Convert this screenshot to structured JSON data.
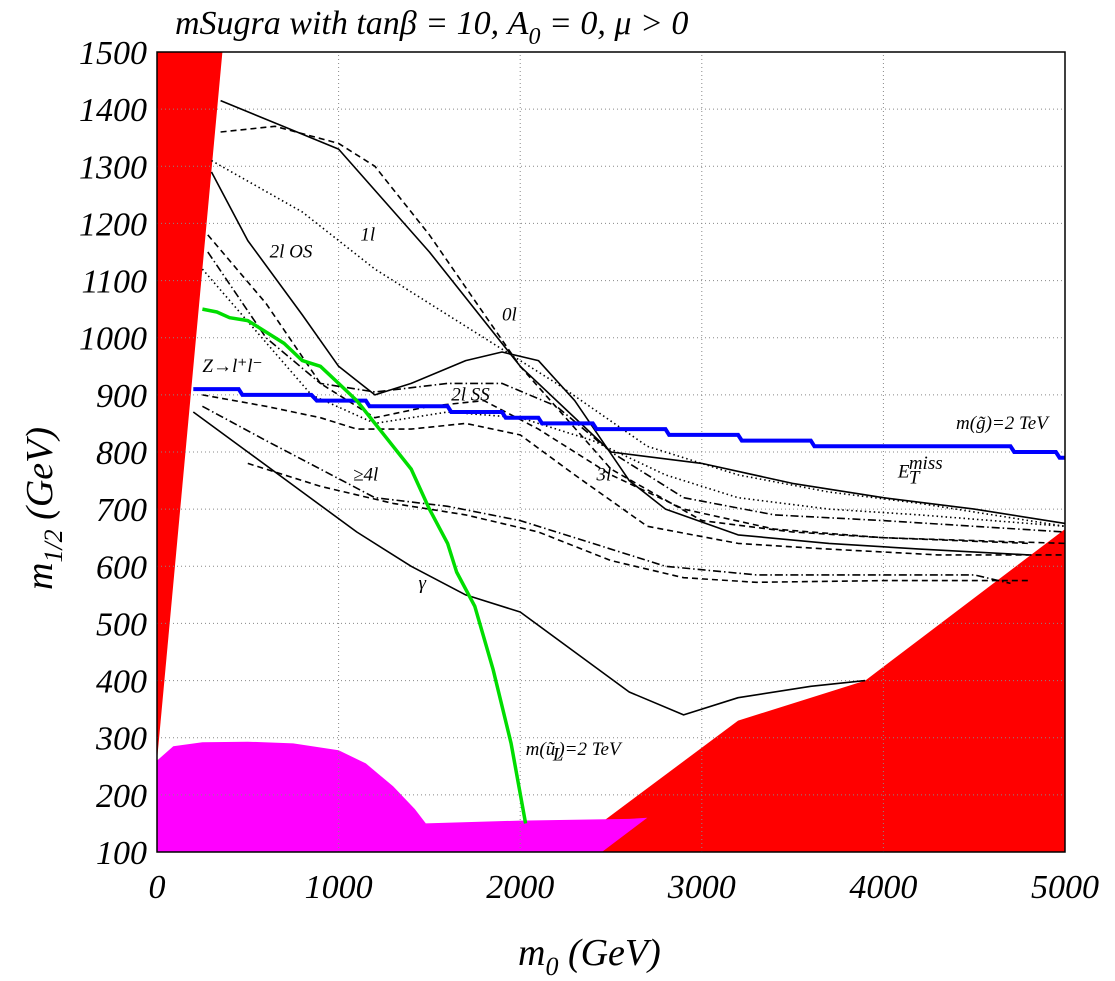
{
  "chart_data": {
    "type": "line",
    "title": "mSugra with tanβ = 10, A",
    "title_sub": "0",
    "title_tail": " = 0, μ > 0",
    "xlabel": "m",
    "xlabel_sub": "0",
    "xlabel_unit": " (GeV)",
    "ylabel": "m",
    "ylabel_sub": "1/2",
    "ylabel_unit": " (GeV)",
    "xlim": [
      0,
      5000
    ],
    "ylim": [
      100,
      1500
    ],
    "grid": true,
    "xticks": [
      "0",
      "1000",
      "2000",
      "3000",
      "4000",
      "5000"
    ],
    "yticks": [
      "100",
      "200",
      "300",
      "400",
      "500",
      "600",
      "700",
      "800",
      "900",
      "1000",
      "1100",
      "1200",
      "1300",
      "1400",
      "1500"
    ],
    "colors": {
      "excluded": "#ff0000",
      "lep_excluded": "#ff00ff",
      "gluino": "#0000ff",
      "squark": "#00dd00",
      "curve": "#000000",
      "grid": "#888888"
    },
    "regions": [
      {
        "name": "excluded-left",
        "color": "#ff0000",
        "points": [
          [
            0,
            1500
          ],
          [
            360,
            1500
          ],
          [
            0,
            260
          ]
        ]
      },
      {
        "name": "excluded-right",
        "color": "#ff0000",
        "points": [
          [
            2230,
            100
          ],
          [
            5000,
            100
          ],
          [
            5000,
            665
          ],
          [
            3900,
            400
          ],
          [
            3200,
            330
          ]
        ]
      },
      {
        "name": "lep-excluded",
        "color": "#ff00ff",
        "points": [
          [
            0,
            100
          ],
          [
            0,
            260
          ],
          [
            90,
            285
          ],
          [
            250,
            292
          ],
          [
            500,
            293
          ],
          [
            750,
            290
          ],
          [
            1000,
            278
          ],
          [
            1150,
            255
          ],
          [
            1300,
            215
          ],
          [
            1420,
            175
          ],
          [
            1480,
            150
          ],
          [
            2000,
            155
          ],
          [
            2600,
            158
          ],
          [
            2700,
            160
          ],
          [
            2450,
            100
          ]
        ]
      }
    ],
    "series": [
      {
        "style": "solid",
        "points": [
          [
            350,
            1415
          ],
          [
            1000,
            1330
          ],
          [
            1500,
            1150
          ],
          [
            2000,
            950
          ],
          [
            2500,
            800
          ],
          [
            3000,
            780
          ],
          [
            3500,
            745
          ],
          [
            4000,
            720
          ],
          [
            4500,
            700
          ],
          [
            5000,
            675
          ]
        ]
      },
      {
        "style": "dashed",
        "points": [
          [
            350,
            1360
          ],
          [
            650,
            1370
          ],
          [
            1000,
            1340
          ],
          [
            1200,
            1300
          ],
          [
            1500,
            1180
          ],
          [
            2000,
            950
          ],
          [
            2500,
            770
          ],
          [
            3000,
            680
          ],
          [
            3500,
            660
          ],
          [
            4000,
            650
          ],
          [
            5000,
            640
          ]
        ]
      },
      {
        "style": "dotted",
        "points": [
          [
            300,
            1310
          ],
          [
            800,
            1220
          ],
          [
            1200,
            1120
          ],
          [
            1700,
            1020
          ],
          [
            2200,
            920
          ],
          [
            2700,
            810
          ],
          [
            3200,
            760
          ],
          [
            3700,
            730
          ],
          [
            4200,
            710
          ],
          [
            5000,
            670
          ]
        ]
      },
      {
        "style": "solid",
        "points": [
          [
            300,
            1290
          ],
          [
            500,
            1170
          ],
          [
            800,
            1040
          ],
          [
            1000,
            950
          ],
          [
            1200,
            900
          ],
          [
            1400,
            920
          ],
          [
            1700,
            960
          ],
          [
            1900,
            975
          ],
          [
            2100,
            960
          ],
          [
            2300,
            890
          ],
          [
            2600,
            750
          ],
          [
            2800,
            700
          ],
          [
            3200,
            655
          ],
          [
            3700,
            640
          ],
          [
            4200,
            630
          ],
          [
            4800,
            620
          ]
        ]
      },
      {
        "style": "dashed",
        "points": [
          [
            280,
            1180
          ],
          [
            600,
            1060
          ],
          [
            900,
            920
          ],
          [
            1200,
            860
          ],
          [
            1500,
            880
          ],
          [
            1800,
            890
          ],
          [
            2100,
            840
          ],
          [
            2500,
            760
          ],
          [
            2900,
            700
          ],
          [
            3400,
            665
          ],
          [
            4000,
            650
          ],
          [
            4800,
            640
          ]
        ]
      },
      {
        "style": "dashdot",
        "points": [
          [
            280,
            1150
          ],
          [
            600,
            1000
          ],
          [
            900,
            920
          ],
          [
            1200,
            905
          ],
          [
            1600,
            920
          ],
          [
            1900,
            920
          ],
          [
            2200,
            880
          ],
          [
            2500,
            800
          ],
          [
            2900,
            720
          ],
          [
            3400,
            690
          ],
          [
            4000,
            680
          ],
          [
            5000,
            660
          ]
        ]
      },
      {
        "style": "dotted",
        "points": [
          [
            250,
            1120
          ],
          [
            550,
            1010
          ],
          [
            850,
            900
          ],
          [
            1200,
            850
          ],
          [
            1600,
            870
          ],
          [
            2000,
            860
          ],
          [
            2400,
            820
          ],
          [
            2800,
            760
          ],
          [
            3200,
            720
          ],
          [
            3700,
            700
          ],
          [
            4200,
            690
          ],
          [
            5000,
            670
          ]
        ]
      },
      {
        "style": "dashed",
        "points": [
          [
            250,
            900
          ],
          [
            600,
            880
          ],
          [
            900,
            860
          ],
          [
            1100,
            840
          ],
          [
            1400,
            840
          ],
          [
            1700,
            850
          ],
          [
            2000,
            830
          ],
          [
            2300,
            760
          ],
          [
            2700,
            670
          ],
          [
            3200,
            640
          ],
          [
            3700,
            630
          ],
          [
            4300,
            620
          ],
          [
            5000,
            620
          ]
        ]
      },
      {
        "style": "dashdot",
        "points": [
          [
            250,
            880
          ],
          [
            600,
            820
          ],
          [
            900,
            770
          ],
          [
            1200,
            720
          ],
          [
            1600,
            705
          ],
          [
            2000,
            680
          ],
          [
            2400,
            640
          ],
          [
            2800,
            600
          ],
          [
            3300,
            585
          ],
          [
            3800,
            585
          ],
          [
            4500,
            585
          ],
          [
            4700,
            570
          ]
        ]
      },
      {
        "style": "dashed",
        "points": [
          [
            500,
            780
          ],
          [
            900,
            740
          ],
          [
            1300,
            710
          ],
          [
            1700,
            690
          ],
          [
            2100,
            660
          ],
          [
            2500,
            610
          ],
          [
            2900,
            580
          ],
          [
            3300,
            572
          ],
          [
            4000,
            575
          ],
          [
            4800,
            575
          ]
        ]
      },
      {
        "style": "solid",
        "points": [
          [
            200,
            870
          ],
          [
            500,
            800
          ],
          [
            800,
            730
          ],
          [
            1100,
            660
          ],
          [
            1400,
            600
          ],
          [
            1700,
            550
          ],
          [
            2000,
            520
          ],
          [
            2300,
            450
          ],
          [
            2600,
            380
          ],
          [
            2900,
            340
          ],
          [
            3200,
            370
          ],
          [
            3600,
            390
          ],
          [
            3900,
            400
          ]
        ]
      }
    ],
    "gluino_line": {
      "name": "m(g)=2 TeV",
      "color": "#0000ff",
      "points": [
        [
          200,
          910
        ],
        [
          450,
          910
        ],
        [
          470,
          900
        ],
        [
          850,
          900
        ],
        [
          880,
          890
        ],
        [
          1150,
          890
        ],
        [
          1170,
          880
        ],
        [
          1600,
          880
        ],
        [
          1620,
          870
        ],
        [
          1900,
          870
        ],
        [
          1920,
          860
        ],
        [
          2100,
          860
        ],
        [
          2120,
          850
        ],
        [
          2400,
          850
        ],
        [
          2420,
          840
        ],
        [
          2800,
          840
        ],
        [
          2820,
          830
        ],
        [
          3200,
          830
        ],
        [
          3220,
          820
        ],
        [
          3600,
          820
        ],
        [
          3620,
          810
        ],
        [
          4700,
          810
        ],
        [
          4720,
          800
        ],
        [
          4950,
          800
        ],
        [
          4970,
          790
        ],
        [
          5000,
          790
        ]
      ]
    },
    "squark_line": {
      "name": "m(u_L)=2 TeV",
      "color": "#00dd00",
      "points": [
        [
          250,
          1050
        ],
        [
          330,
          1045
        ],
        [
          400,
          1035
        ],
        [
          500,
          1030
        ],
        [
          600,
          1010
        ],
        [
          700,
          990
        ],
        [
          800,
          960
        ],
        [
          900,
          950
        ],
        [
          1000,
          920
        ],
        [
          1100,
          890
        ],
        [
          1200,
          850
        ],
        [
          1300,
          810
        ],
        [
          1400,
          770
        ],
        [
          1500,
          700
        ],
        [
          1600,
          640
        ],
        [
          1650,
          590
        ],
        [
          1750,
          530
        ],
        [
          1850,
          420
        ],
        [
          1950,
          290
        ],
        [
          2030,
          150
        ]
      ]
    },
    "annotations": [
      {
        "text": "2l OS",
        "x": 620,
        "y": 1140
      },
      {
        "text": "1l",
        "x": 1120,
        "y": 1170
      },
      {
        "text": "0l",
        "x": 1900,
        "y": 1030
      },
      {
        "text": "Z→l⁺l⁻",
        "x": 250,
        "y": 940
      },
      {
        "text": "2l SS",
        "x": 1620,
        "y": 890
      },
      {
        "text": "≥4l",
        "x": 1080,
        "y": 750
      },
      {
        "text": "3l",
        "x": 2420,
        "y": 750
      },
      {
        "text": "γ",
        "x": 1440,
        "y": 560
      },
      {
        "text": "m(g̃)=2 TeV",
        "x": 4400,
        "y": 840
      },
      {
        "text": "E",
        "x": 4080,
        "y": 755
      },
      {
        "text": "T",
        "x": 4140,
        "y": 745
      },
      {
        "text": "miss",
        "x": 4140,
        "y": 770
      },
      {
        "text": "m(ũ",
        "x": 2030,
        "y": 270
      },
      {
        "text": "L",
        "x": 2180,
        "y": 260
      },
      {
        "text": ")=2 TeV",
        "x": 2210,
        "y": 270
      }
    ]
  }
}
